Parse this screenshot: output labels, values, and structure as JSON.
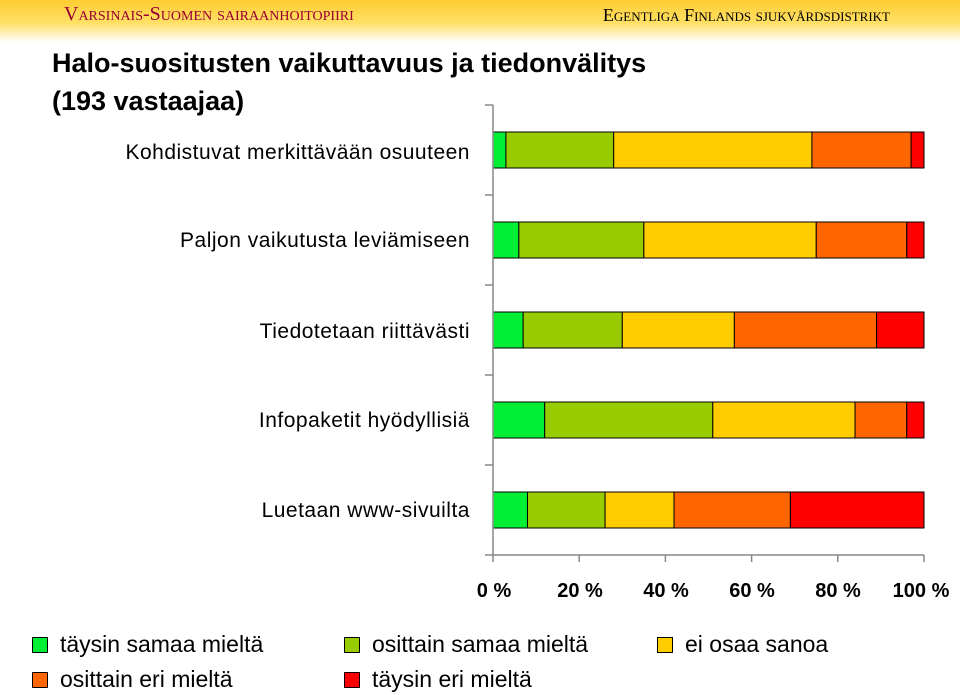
{
  "header": {
    "left_org": "Varsinais-Suomen sairaanhoitopiiri",
    "right_org": "Egentliga Finlands sjukvårdsdistrikt"
  },
  "title": "Halo-suositusten vaikuttavuus ja tiedonvälitys\n(193 vastaajaa)",
  "chart_data": {
    "type": "bar",
    "orientation": "horizontal",
    "stacked": "100%",
    "title": "Halo-suositusten vaikuttavuus ja tiedonvälitys (193 vastaajaa)",
    "categories": [
      "Kohdistuvat merkittävään osuuteen",
      "Paljon vaikutusta leviämiseen",
      "Tiedotetaan riittävästi",
      "Infopaketit hyödyllisiä",
      "Luetaan www-sivuilta"
    ],
    "series": [
      {
        "name": "täysin samaa mieltä",
        "color": "#00ee33",
        "values": [
          3,
          6,
          7,
          12,
          8
        ]
      },
      {
        "name": "osittain samaa mieltä",
        "color": "#99cc00",
        "values": [
          25,
          29,
          23,
          39,
          18
        ]
      },
      {
        "name": "ei osaa sanoa",
        "color": "#ffcc00",
        "values": [
          46,
          40,
          26,
          33,
          16
        ]
      },
      {
        "name": "osittain eri mieltä",
        "color": "#ff6600",
        "values": [
          23,
          21,
          33,
          12,
          27
        ]
      },
      {
        "name": "täysin eri mieltä",
        "color": "#ff0000",
        "values": [
          3,
          4,
          11,
          4,
          31
        ]
      }
    ],
    "xlim": [
      0,
      100
    ],
    "ticks": [
      "0 %",
      "20 %",
      "40 %",
      "60 %",
      "80 %",
      "100 %"
    ],
    "grid": false,
    "legend_position": "bottom"
  }
}
